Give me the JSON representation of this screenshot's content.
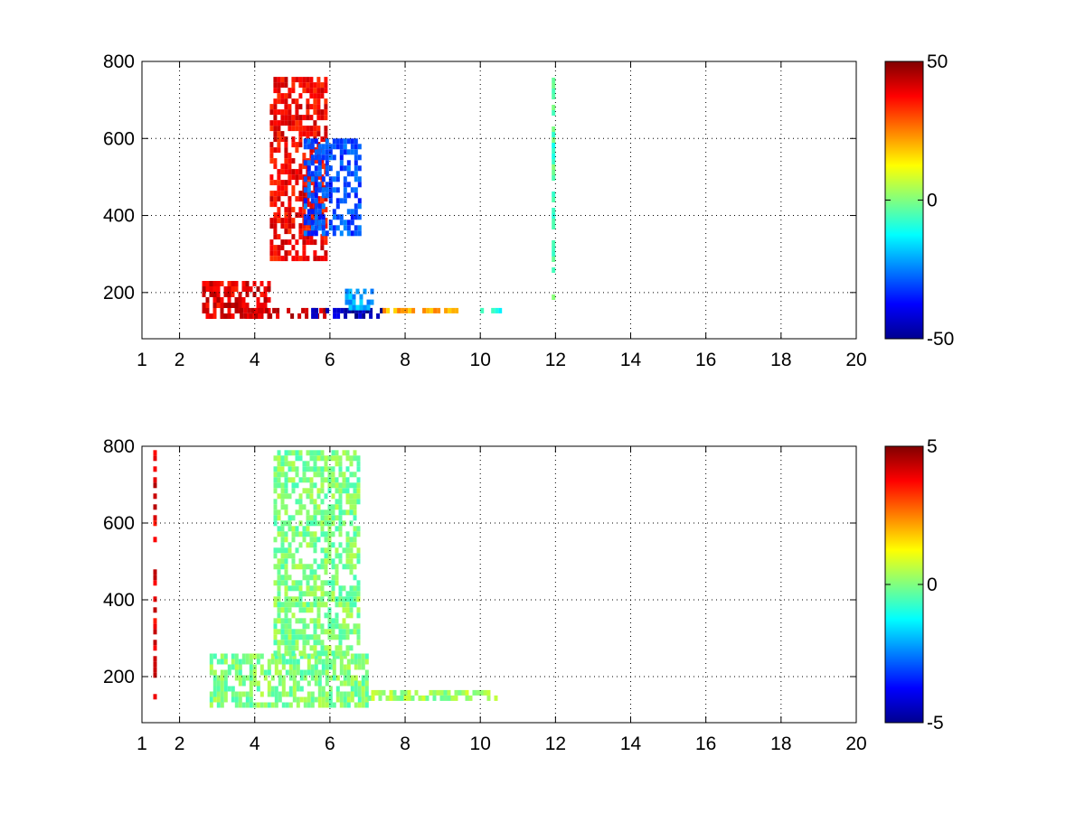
{
  "chart_data": [
    {
      "type": "heatmap",
      "title": "",
      "xlabel": "",
      "ylabel": "",
      "xlim": [
        1,
        20
      ],
      "ylim": [
        80,
        800
      ],
      "x_ticks": [
        1,
        2,
        4,
        6,
        8,
        10,
        12,
        14,
        16,
        18,
        20
      ],
      "y_ticks": [
        200,
        400,
        600,
        800
      ],
      "grid": true,
      "grid_style": "dotted",
      "colormap": "jet",
      "clim": [
        -50,
        50
      ],
      "colorbar_ticks": [
        -50,
        0,
        50
      ],
      "values_note": "",
      "features": [
        {
          "x": [
            2.6,
            4.4
          ],
          "y": [
            130,
            230
          ],
          "value": 40
        },
        {
          "x": [
            3.6,
            5.9
          ],
          "y": [
            130,
            160
          ],
          "value": 42
        },
        {
          "x": [
            5.5,
            7.4
          ],
          "y": [
            130,
            160
          ],
          "value": -45
        },
        {
          "x": [
            4.4,
            5.9
          ],
          "y": [
            280,
            760
          ],
          "value": 38
        },
        {
          "x": [
            5.3,
            6.8
          ],
          "y": [
            350,
            600
          ],
          "value": -30
        },
        {
          "x": [
            6.4,
            7.2
          ],
          "y": [
            150,
            210
          ],
          "value": -20
        },
        {
          "x": [
            7.4,
            9.4
          ],
          "y": [
            140,
            160
          ],
          "value": 20
        },
        {
          "x": [
            10.0,
            10.6
          ],
          "y": [
            140,
            160
          ],
          "value": -10
        },
        {
          "x": [
            11.9,
            12.0
          ],
          "y": [
            170,
            800
          ],
          "value": -5
        }
      ]
    },
    {
      "type": "heatmap",
      "title": "",
      "xlabel": "",
      "ylabel": "",
      "xlim": [
        1,
        20
      ],
      "ylim": [
        80,
        800
      ],
      "x_ticks": [
        1,
        2,
        4,
        6,
        8,
        10,
        12,
        14,
        16,
        18,
        20
      ],
      "y_ticks": [
        200,
        400,
        600,
        800
      ],
      "grid": true,
      "grid_style": "dotted",
      "colormap": "jet",
      "clim": [
        -5,
        5
      ],
      "colorbar_ticks": [
        -5,
        0,
        5
      ],
      "features": [
        {
          "x": [
            2.8,
            7.0
          ],
          "y": [
            120,
            260
          ],
          "value": 0
        },
        {
          "x": [
            4.5,
            6.8
          ],
          "y": [
            260,
            790
          ],
          "value": 0
        },
        {
          "x": [
            7.0,
            10.6
          ],
          "y": [
            140,
            165
          ],
          "value": 0.3
        },
        {
          "x": [
            1.3,
            1.35
          ],
          "y": [
            120,
            790
          ],
          "value": 4
        }
      ]
    }
  ]
}
